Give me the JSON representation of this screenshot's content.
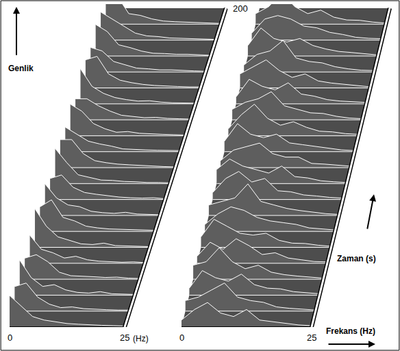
{
  "chart_data": [
    {
      "type": "waterfall",
      "color": "#ffffff",
      "zlabel": "Genlik",
      "xlabel": "(Hz)",
      "x": [
        0,
        2.5,
        5,
        7.5,
        10,
        12.5,
        15,
        17.5,
        20,
        22.5,
        25
      ],
      "xlim": [
        0,
        25
      ],
      "xticks": [
        0,
        25
      ],
      "ylim": [
        0,
        200
      ],
      "yticks": [
        200
      ],
      "times": [
        0,
        10,
        20,
        30,
        40,
        50,
        60,
        70,
        80,
        90,
        100,
        110,
        120,
        130,
        140,
        150,
        160,
        170,
        180,
        190
      ],
      "values": [
        [
          9,
          6,
          3,
          2,
          1.5,
          1,
          0.8,
          0.6,
          0.5,
          0.4,
          0.3
        ],
        [
          7,
          8,
          4,
          2,
          1,
          1.2,
          0.7,
          0.5,
          0.4,
          0.3,
          0.3
        ],
        [
          10,
          5,
          2.5,
          3,
          1.5,
          0.8,
          0.6,
          1,
          0.4,
          0.3,
          0.2
        ],
        [
          6,
          7,
          5,
          2,
          1,
          0.9,
          0.7,
          0.5,
          0.6,
          0.3,
          0.2
        ],
        [
          8,
          4,
          3,
          1.5,
          2,
          1,
          0.6,
          0.5,
          0.3,
          0.4,
          0.2
        ],
        [
          11,
          6,
          3,
          2,
          1,
          0.8,
          1.2,
          0.5,
          0.4,
          0.3,
          0.2
        ],
        [
          7,
          9,
          4,
          3,
          1.5,
          1,
          0.7,
          0.6,
          0.4,
          0.3,
          0.3
        ],
        [
          9,
          5,
          3,
          2.5,
          1.2,
          0.8,
          0.6,
          0.9,
          0.4,
          0.3,
          0.2
        ],
        [
          6,
          7,
          3.5,
          2,
          1.5,
          1.1,
          0.7,
          0.5,
          0.4,
          0.5,
          0.2
        ],
        [
          10,
          6,
          2.5,
          1.8,
          1,
          0.9,
          0.6,
          0.5,
          0.3,
          0.3,
          0.2
        ],
        [
          8,
          8,
          4,
          2,
          1.4,
          1,
          0.8,
          0.6,
          0.5,
          0.3,
          0.2
        ],
        [
          7,
          5,
          3,
          2.2,
          1.6,
          0.8,
          0.6,
          0.5,
          0.4,
          0.4,
          0.3
        ],
        [
          9,
          7,
          3.5,
          2,
          1,
          1.2,
          0.7,
          0.5,
          0.4,
          0.3,
          0.2
        ],
        [
          6,
          6,
          4,
          2.5,
          1.3,
          0.9,
          0.6,
          0.7,
          0.4,
          0.3,
          0.2
        ],
        [
          10,
          5,
          3,
          1.8,
          1.2,
          0.8,
          0.9,
          0.5,
          0.3,
          0.3,
          0.2
        ],
        [
          8,
          9,
          4,
          2.2,
          1.5,
          1,
          0.7,
          0.5,
          0.4,
          0.3,
          0.3
        ],
        [
          7,
          6,
          3,
          2,
          1.1,
          0.9,
          0.6,
          0.6,
          0.4,
          0.3,
          0.2
        ],
        [
          9,
          7,
          3.2,
          2.4,
          1.4,
          0.8,
          0.7,
          0.5,
          0.5,
          0.3,
          0.2
        ],
        [
          8,
          6,
          4,
          2,
          1.2,
          1,
          0.6,
          0.5,
          0.4,
          0.3,
          0.2
        ],
        [
          10,
          8,
          3,
          2.5,
          1.5,
          0.9,
          0.7,
          0.6,
          0.4,
          0.3,
          0.2
        ]
      ]
    },
    {
      "type": "waterfall",
      "color": "#ffffff",
      "xlabel": "Frekans (Hz)",
      "ylabel": "Zaman (s)",
      "x": [
        0,
        2.5,
        5,
        7.5,
        10,
        12.5,
        15,
        17.5,
        20,
        22.5,
        25
      ],
      "xlim": [
        0,
        25
      ],
      "xticks": [
        0,
        25
      ],
      "ylim": [
        0,
        200
      ],
      "tick_labels": "x",
      "times": [
        0,
        10,
        20,
        30,
        40,
        50,
        60,
        70,
        80,
        90,
        100,
        110,
        120,
        130,
        140,
        150,
        160,
        170,
        180,
        190
      ],
      "values": [
        [
          2,
          5,
          7,
          4,
          3,
          5,
          2,
          1.5,
          1,
          0.6,
          0.4
        ],
        [
          3,
          4,
          6,
          8,
          4,
          3,
          2.5,
          1.2,
          0.8,
          0.5,
          0.3
        ],
        [
          2,
          7,
          5,
          4,
          6,
          3,
          2,
          1.8,
          1,
          0.7,
          0.4
        ],
        [
          4,
          5,
          9,
          5,
          3,
          4,
          2,
          1.3,
          0.9,
          0.6,
          0.3
        ],
        [
          2,
          6,
          4,
          7,
          5,
          2.5,
          3,
          1.5,
          1,
          0.5,
          0.4
        ],
        [
          3,
          8,
          6,
          4,
          3.5,
          4,
          2,
          1.2,
          1.1,
          0.6,
          0.3
        ],
        [
          2,
          5,
          7,
          6,
          4,
          3,
          2.5,
          2,
          1,
          0.7,
          0.4
        ],
        [
          3,
          4,
          5,
          9,
          4,
          3,
          2,
          1.4,
          0.9,
          0.5,
          0.3
        ],
        [
          2,
          6,
          8,
          5,
          6,
          2.5,
          2.2,
          1.3,
          1,
          0.6,
          0.4
        ],
        [
          4,
          7,
          5,
          4,
          3,
          5,
          2,
          1.6,
          0.8,
          0.5,
          0.3
        ],
        [
          2,
          5,
          6,
          7,
          4,
          3,
          3,
          1.2,
          1,
          0.7,
          0.4
        ],
        [
          3,
          8,
          5,
          4,
          5,
          2.5,
          2,
          1.5,
          0.9,
          0.5,
          0.3
        ],
        [
          2,
          6,
          9,
          5,
          3,
          4,
          2.4,
          1.3,
          1.1,
          0.6,
          0.4
        ],
        [
          3,
          5,
          6,
          8,
          4,
          3,
          2,
          1.8,
          1,
          0.5,
          0.3
        ],
        [
          2,
          7,
          5,
          4,
          6,
          2.8,
          2.2,
          1.2,
          0.8,
          0.6,
          0.4
        ],
        [
          4,
          6,
          8,
          5,
          3,
          4,
          2,
          1.4,
          1,
          0.7,
          0.3
        ],
        [
          2,
          5,
          6,
          9,
          4,
          3,
          2.6,
          1.5,
          0.9,
          0.5,
          0.4
        ],
        [
          3,
          8,
          5,
          4,
          5,
          3,
          2,
          1.3,
          1,
          0.6,
          0.3
        ],
        [
          2,
          6,
          7,
          6,
          4,
          3.5,
          2.2,
          1.6,
          0.8,
          0.5,
          0.4
        ],
        [
          3,
          5,
          9,
          5,
          3,
          4,
          2,
          1.2,
          1.1,
          0.6,
          0.3
        ]
      ]
    }
  ]
}
